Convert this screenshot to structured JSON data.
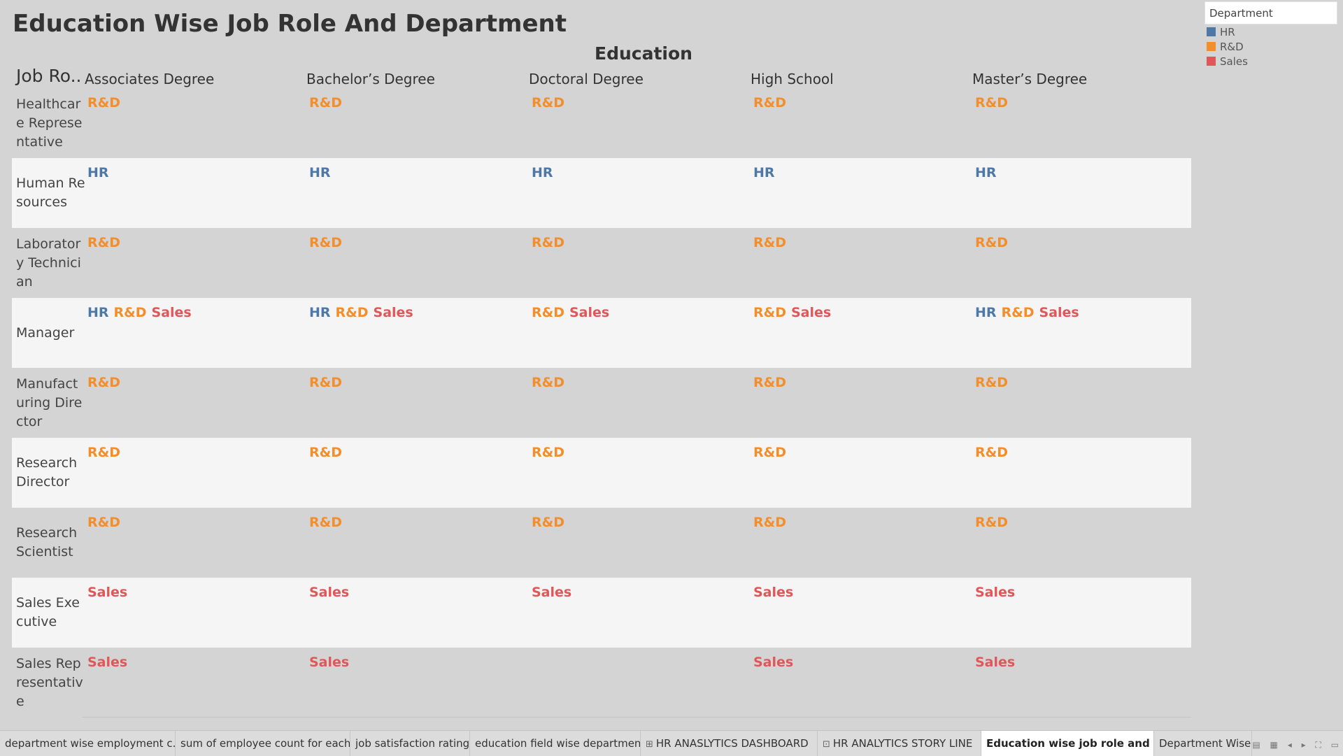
{
  "title": "Education Wise Job Role And Department",
  "column_header_title": "Education",
  "row_header_title": "Job Ro..",
  "colors": {
    "HR": "#4e79a7",
    "R&D": "#f28e2b",
    "Sales": "#e15759"
  },
  "legend": {
    "title": "Department",
    "items": [
      {
        "label": "HR",
        "color": "#4e79a7"
      },
      {
        "label": "R&D",
        "color": "#f28e2b"
      },
      {
        "label": "Sales",
        "color": "#e15759"
      }
    ]
  },
  "columns": [
    "Associates Degree",
    "Bachelor’s Degree",
    "Doctoral Degree",
    "High School",
    "Master’s Degree"
  ],
  "rows": [
    {
      "label": "Healthcare Representative",
      "cells": [
        [
          "R&D"
        ],
        [
          "R&D"
        ],
        [
          "R&D"
        ],
        [
          "R&D"
        ],
        [
          "R&D"
        ]
      ]
    },
    {
      "label": "Human Resources",
      "cells": [
        [
          "HR"
        ],
        [
          "HR"
        ],
        [
          "HR"
        ],
        [
          "HR"
        ],
        [
          "HR"
        ]
      ]
    },
    {
      "label": "Laboratory Technician",
      "cells": [
        [
          "R&D"
        ],
        [
          "R&D"
        ],
        [
          "R&D"
        ],
        [
          "R&D"
        ],
        [
          "R&D"
        ]
      ]
    },
    {
      "label": "Manager",
      "cells": [
        [
          "HR",
          "R&D",
          "Sales"
        ],
        [
          "HR",
          "R&D",
          "Sales"
        ],
        [
          "R&D",
          "Sales"
        ],
        [
          "R&D",
          "Sales"
        ],
        [
          "HR",
          "R&D",
          "Sales"
        ]
      ]
    },
    {
      "label": "Manufacturing Director",
      "cells": [
        [
          "R&D"
        ],
        [
          "R&D"
        ],
        [
          "R&D"
        ],
        [
          "R&D"
        ],
        [
          "R&D"
        ]
      ]
    },
    {
      "label": "Research Director",
      "cells": [
        [
          "R&D"
        ],
        [
          "R&D"
        ],
        [
          "R&D"
        ],
        [
          "R&D"
        ],
        [
          "R&D"
        ]
      ]
    },
    {
      "label": "Research Scientist",
      "cells": [
        [
          "R&D"
        ],
        [
          "R&D"
        ],
        [
          "R&D"
        ],
        [
          "R&D"
        ],
        [
          "R&D"
        ]
      ]
    },
    {
      "label": "Sales Executive",
      "cells": [
        [
          "Sales"
        ],
        [
          "Sales"
        ],
        [
          "Sales"
        ],
        [
          "Sales"
        ],
        [
          "Sales"
        ]
      ]
    },
    {
      "label": "Sales Representative",
      "cells": [
        [
          "Sales"
        ],
        [
          "Sales"
        ],
        [],
        [
          "Sales"
        ],
        [
          "Sales"
        ]
      ]
    }
  ],
  "tabs": [
    {
      "label": "department wise employment c...",
      "icon": ""
    },
    {
      "label": "sum of employee count for each ...",
      "icon": ""
    },
    {
      "label": "job satisfaction rating",
      "icon": ""
    },
    {
      "label": "education field wise department",
      "icon": ""
    },
    {
      "label": "HR ANASLYTICS DASHBOARD",
      "icon": "dashboard-icon"
    },
    {
      "label": "HR ANALYTICS STORY LINE",
      "icon": "story-icon"
    },
    {
      "label": "Education wise job role and de...",
      "icon": "",
      "active": true
    },
    {
      "label": "Department Wise",
      "icon": ""
    }
  ],
  "tab_controls": [
    "sheet-sorter-icon",
    "filmstrip-icon",
    "prev-tab-icon",
    "next-tab-icon",
    "fullscreen-icon",
    "presentation-icon"
  ]
}
